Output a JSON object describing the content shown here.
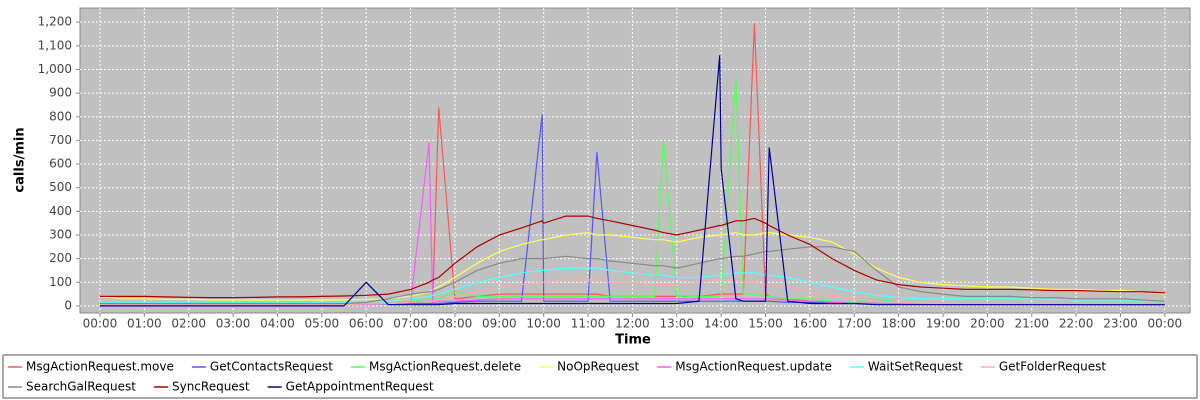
{
  "chart_data": {
    "type": "line",
    "x_label": "Time",
    "y_label": "calls/min",
    "x": [
      0,
      30,
      60,
      90,
      120,
      150,
      180,
      210,
      240,
      270,
      300,
      330,
      360,
      390,
      420,
      445,
      450,
      458,
      480,
      510,
      540,
      570,
      598,
      600,
      630,
      660,
      672,
      690,
      720,
      750,
      762,
      780,
      810,
      838,
      840,
      860,
      870,
      885,
      900,
      905,
      930,
      960,
      990,
      1020,
      1050,
      1080,
      1110,
      1140,
      1170,
      1200,
      1230,
      1260,
      1290,
      1320,
      1350,
      1380,
      1410,
      1440
    ],
    "xlim": [
      -27,
      1474
    ],
    "xticks": [
      {
        "value": 0,
        "label": "00:00"
      },
      {
        "value": 60,
        "label": "01:00"
      },
      {
        "value": 120,
        "label": "02:00"
      },
      {
        "value": 180,
        "label": "03:00"
      },
      {
        "value": 240,
        "label": "04:00"
      },
      {
        "value": 300,
        "label": "05:00"
      },
      {
        "value": 360,
        "label": "06:00"
      },
      {
        "value": 420,
        "label": "07:00"
      },
      {
        "value": 480,
        "label": "08:00"
      },
      {
        "value": 540,
        "label": "09:00"
      },
      {
        "value": 600,
        "label": "10:00"
      },
      {
        "value": 660,
        "label": "11:00"
      },
      {
        "value": 720,
        "label": "12:00"
      },
      {
        "value": 780,
        "label": "13:00"
      },
      {
        "value": 840,
        "label": "14:00"
      },
      {
        "value": 900,
        "label": "15:00"
      },
      {
        "value": 960,
        "label": "16:00"
      },
      {
        "value": 1020,
        "label": "17:00"
      },
      {
        "value": 1080,
        "label": "18:00"
      },
      {
        "value": 1140,
        "label": "19:00"
      },
      {
        "value": 1200,
        "label": "20:00"
      },
      {
        "value": 1260,
        "label": "21:00"
      },
      {
        "value": 1320,
        "label": "22:00"
      },
      {
        "value": 1380,
        "label": "23:00"
      },
      {
        "value": 1440,
        "label": "00:00"
      }
    ],
    "ylim": [
      -30,
      1260
    ],
    "yticks": [
      0,
      100,
      200,
      300,
      400,
      500,
      600,
      700,
      800,
      900,
      {
        "value": 1000,
        "label": "1,000"
      },
      {
        "value": 1100,
        "label": "1,100"
      },
      {
        "value": 1200,
        "label": "1,200"
      }
    ],
    "grid": true,
    "series": [
      {
        "name": "MsgActionRequest.move",
        "color": "#ff5555",
        "values": [
          10,
          5,
          5,
          5,
          5,
          5,
          5,
          5,
          5,
          5,
          5,
          5,
          8,
          10,
          15,
          20,
          20,
          840,
          30,
          40,
          50,
          50,
          50,
          50,
          50,
          50,
          50,
          40,
          40,
          40,
          40,
          40,
          40,
          50,
          50,
          50,
          50,
          1195,
          50,
          40,
          30,
          20,
          15,
          10,
          10,
          8,
          8,
          8,
          8,
          8,
          8,
          8,
          8,
          8,
          5,
          5,
          5,
          5
        ]
      },
      {
        "name": "GetContactsRequest",
        "color": "#5555ff",
        "values": [
          5,
          5,
          5,
          5,
          5,
          5,
          5,
          5,
          5,
          5,
          5,
          5,
          5,
          8,
          10,
          10,
          10,
          10,
          15,
          20,
          20,
          20,
          810,
          20,
          20,
          20,
          650,
          20,
          20,
          20,
          20,
          20,
          20,
          20,
          20,
          20,
          20,
          20,
          20,
          20,
          15,
          15,
          10,
          10,
          10,
          8,
          8,
          5,
          5,
          5,
          5,
          5,
          5,
          5,
          5,
          5,
          5,
          5
        ]
      },
      {
        "name": "MsgActionRequest.delete",
        "color": "#55ff55",
        "values": [
          5,
          5,
          5,
          5,
          5,
          5,
          5,
          5,
          5,
          5,
          5,
          5,
          5,
          10,
          20,
          30,
          30,
          30,
          60,
          40,
          40,
          40,
          40,
          40,
          40,
          40,
          40,
          40,
          40,
          40,
          700,
          40,
          40,
          40,
          40,
          970,
          50,
          50,
          40,
          40,
          30,
          30,
          20,
          15,
          30,
          15,
          10,
          10,
          10,
          10,
          10,
          10,
          10,
          10,
          10,
          10,
          10,
          10
        ]
      },
      {
        "name": "NoOpRequest",
        "color": "#ffff55",
        "values": [
          40,
          30,
          30,
          28,
          28,
          25,
          25,
          25,
          25,
          25,
          25,
          25,
          28,
          30,
          40,
          60,
          70,
          80,
          120,
          180,
          230,
          260,
          280,
          280,
          300,
          310,
          300,
          300,
          290,
          280,
          280,
          270,
          290,
          300,
          300,
          310,
          300,
          300,
          310,
          310,
          300,
          290,
          270,
          220,
          160,
          120,
          100,
          90,
          85,
          80,
          80,
          75,
          70,
          70,
          65,
          65,
          60,
          50
        ]
      },
      {
        "name": "MsgActionRequest.update",
        "color": "#ff55ff",
        "values": [
          5,
          5,
          5,
          5,
          5,
          5,
          5,
          5,
          5,
          5,
          5,
          5,
          5,
          10,
          15,
          690,
          15,
          20,
          20,
          25,
          30,
          30,
          30,
          30,
          30,
          30,
          30,
          30,
          30,
          30,
          30,
          30,
          30,
          30,
          30,
          30,
          30,
          30,
          30,
          30,
          25,
          20,
          15,
          10,
          10,
          8,
          8,
          5,
          5,
          5,
          5,
          5,
          5,
          5,
          5,
          5,
          5,
          5
        ]
      },
      {
        "name": "WaitSetRequest",
        "color": "#55ffff",
        "values": [
          15,
          15,
          15,
          15,
          15,
          15,
          15,
          15,
          15,
          15,
          15,
          15,
          18,
          20,
          30,
          40,
          45,
          50,
          70,
          100,
          120,
          140,
          150,
          150,
          160,
          160,
          160,
          150,
          140,
          130,
          130,
          120,
          120,
          130,
          130,
          140,
          140,
          140,
          130,
          130,
          120,
          100,
          80,
          60,
          45,
          35,
          30,
          30,
          30,
          30,
          30,
          30,
          28,
          25,
          25,
          25,
          22,
          20
        ]
      },
      {
        "name": "GetFolderRequest",
        "color": "#ffaaaa",
        "values": [
          5,
          5,
          5,
          5,
          5,
          5,
          5,
          5,
          5,
          5,
          5,
          5,
          8,
          10,
          15,
          20,
          20,
          25,
          40,
          60,
          80,
          90,
          100,
          100,
          110,
          110,
          110,
          100,
          100,
          90,
          90,
          90,
          100,
          110,
          110,
          110,
          100,
          100,
          90,
          90,
          80,
          60,
          40,
          30,
          20,
          15,
          12,
          10,
          10,
          10,
          10,
          10,
          10,
          8,
          8,
          8,
          8,
          5
        ]
      },
      {
        "name": "SearchGalRequest",
        "color": "#888888",
        "values": [
          10,
          10,
          10,
          10,
          10,
          10,
          10,
          10,
          10,
          10,
          10,
          10,
          15,
          30,
          50,
          60,
          60,
          70,
          100,
          150,
          180,
          200,
          200,
          200,
          210,
          200,
          200,
          190,
          180,
          170,
          170,
          160,
          180,
          200,
          200,
          210,
          210,
          220,
          230,
          230,
          240,
          250,
          250,
          230,
          150,
          80,
          60,
          50,
          40,
          40,
          40,
          35,
          35,
          30,
          30,
          30,
          25,
          20
        ]
      },
      {
        "name": "SyncRequest",
        "color": "#aa0000",
        "values": [
          40,
          40,
          40,
          38,
          36,
          35,
          35,
          36,
          38,
          38,
          40,
          42,
          45,
          50,
          70,
          100,
          110,
          120,
          180,
          250,
          300,
          330,
          360,
          350,
          380,
          380,
          370,
          360,
          340,
          320,
          310,
          300,
          320,
          340,
          340,
          360,
          360,
          370,
          350,
          340,
          300,
          260,
          200,
          150,
          110,
          90,
          80,
          75,
          70,
          70,
          70,
          68,
          65,
          65,
          62,
          60,
          60,
          55
        ]
      },
      {
        "name": "GetAppointmentRequest",
        "color": "#000099",
        "values": [
          0,
          0,
          0,
          0,
          0,
          0,
          0,
          0,
          0,
          0,
          0,
          0,
          100,
          5,
          5,
          5,
          5,
          5,
          10,
          10,
          10,
          10,
          10,
          10,
          10,
          10,
          10,
          10,
          10,
          10,
          10,
          10,
          20,
          1060,
          580,
          30,
          20,
          20,
          20,
          670,
          20,
          10,
          10,
          10,
          5,
          5,
          5,
          5,
          5,
          5,
          5,
          5,
          5,
          5,
          5,
          5,
          5,
          5
        ]
      }
    ]
  }
}
